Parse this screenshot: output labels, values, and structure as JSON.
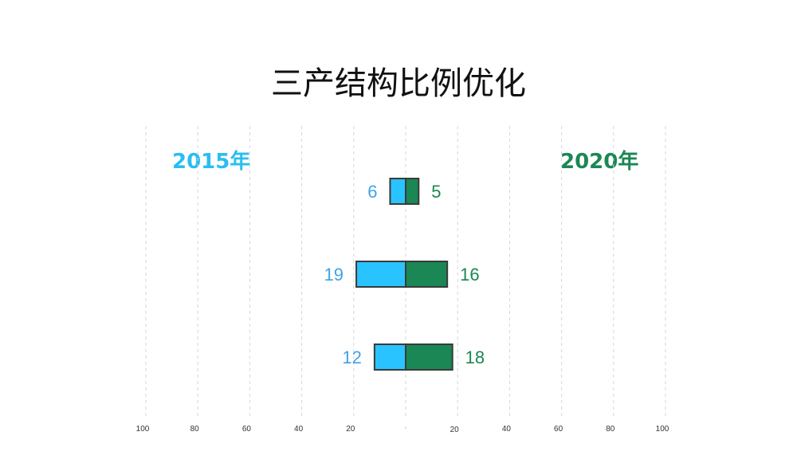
{
  "chart_data": {
    "type": "bar",
    "orientation": "horizontal-butterfly",
    "title": "三产结构比例优化",
    "categories": [
      "",
      "",
      ""
    ],
    "series": [
      {
        "name": "2015年",
        "values": [
          6,
          19,
          12
        ],
        "color": "#29C3FF",
        "side": "left",
        "label_color": "#3FA2E6"
      },
      {
        "name": "2020年",
        "values": [
          5,
          16,
          18
        ],
        "color": "#1A8754",
        "side": "right",
        "label_color": "#1A8754"
      }
    ],
    "xlim": [
      -100,
      100
    ],
    "x_ticks": [
      100,
      80,
      60,
      40,
      20,
      0,
      20,
      40,
      60,
      80,
      100
    ],
    "x_tick_labels": [
      "100",
      "80",
      "60",
      "40",
      "20",
      "0",
      "20",
      "40",
      "60",
      "80",
      "100"
    ],
    "grid": "vertical dashed",
    "bar_border_color": "#3a3a3a"
  }
}
